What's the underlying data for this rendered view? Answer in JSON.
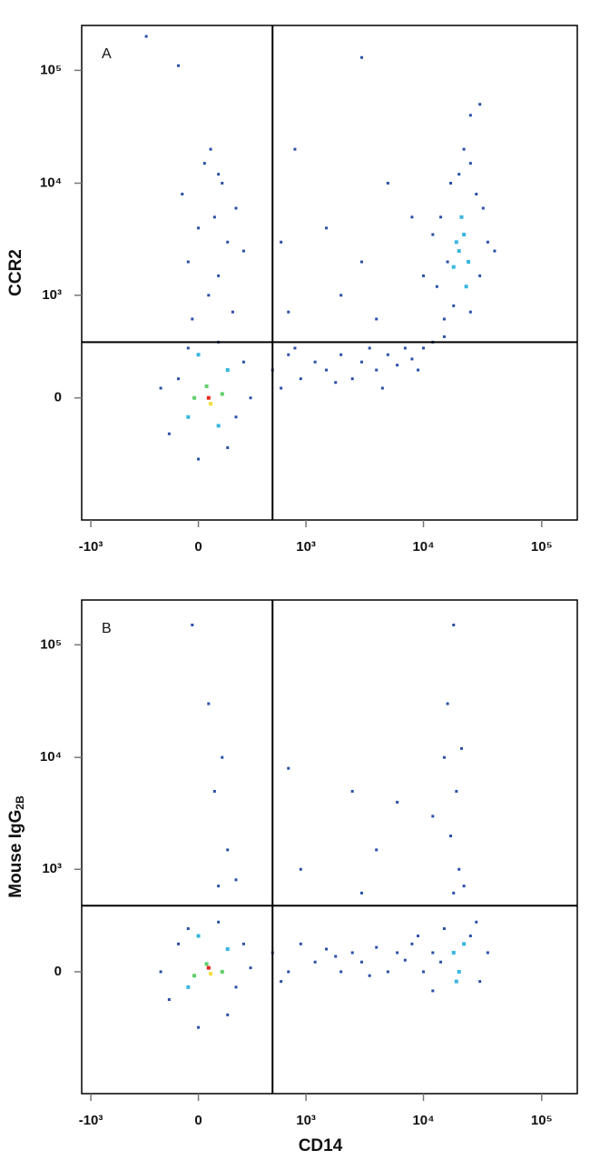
{
  "chart_data": [
    {
      "type": "scatter",
      "panel_label": "A",
      "ylabel": {
        "text": "CCR2"
      },
      "scale": "biexponential",
      "xlim": [
        -1200,
        200000
      ],
      "ylim": [
        -1500,
        250000
      ],
      "xticks": [
        {
          "value": -1000,
          "label": "-10³"
        },
        0,
        {
          "value": 1000,
          "label": "10³"
        },
        {
          "value": 10000,
          "label": "10⁴"
        },
        {
          "value": 100000,
          "label": "10⁵"
        }
      ],
      "yticks": [
        0,
        {
          "value": 1000,
          "label": "10³"
        },
        {
          "value": 10000,
          "label": "10⁴"
        },
        {
          "value": 100000,
          "label": "10⁵"
        }
      ],
      "quadrant": {
        "x": 500,
        "y": 350
      },
      "series": [
        {
          "color": "#2a4fa8",
          "x": [
            -150,
            -100,
            150,
            250,
            200,
            -50,
            100,
            300,
            -200,
            0,
            500,
            700,
            900,
            1200,
            1500,
            2000,
            2500,
            3000,
            4000,
            5000,
            6000,
            7000,
            8000,
            10000,
            12000,
            15000,
            600,
            800,
            1800,
            3500,
            4500,
            9000,
            50,
            100,
            -50,
            150,
            0,
            80,
            200,
            -80,
            120,
            30,
            60,
            180,
            -30,
            250,
            100,
            15000,
            18000,
            25000,
            13000,
            30000,
            16000,
            35000,
            14000,
            28000,
            20000,
            25000,
            22000,
            32000,
            17000,
            40000,
            12000,
            1500,
            3000,
            5000,
            800,
            2000,
            8000,
            700,
            4000,
            10000,
            600,
            -300,
            -100,
            3000,
            25000,
            30000
          ],
          "values": [
            -200,
            100,
            -300,
            200,
            -100,
            300,
            350,
            0,
            50,
            -400,
            150,
            250,
            100,
            200,
            150,
            250,
            100,
            200,
            150,
            250,
            180,
            300,
            220,
            300,
            350,
            400,
            50,
            300,
            80,
            300,
            50,
            150,
            1000,
            1500,
            2000,
            3000,
            4000,
            5000,
            6000,
            8000,
            10000,
            15000,
            20000,
            700,
            600,
            2500,
            12000,
            600,
            800,
            700,
            1200,
            1500,
            2000,
            3000,
            5000,
            8000,
            12000,
            15000,
            20000,
            6000,
            10000,
            2500,
            3500,
            4000,
            2000,
            10000,
            20000,
            1000,
            5000,
            700,
            600,
            1500,
            3000,
            200000,
            110000,
            130000,
            40000,
            50000
          ]
        },
        {
          "color": "#38b6e0",
          "x": [
            20000,
            22000,
            18000,
            24000,
            21000,
            19000,
            23000,
            -50,
            150,
            0,
            100
          ],
          "values": [
            2500,
            3500,
            1800,
            2000,
            5000,
            3000,
            1200,
            -100,
            150,
            250,
            -150
          ]
        },
        {
          "color": "#5fcf6a",
          "x": [
            40,
            -20,
            120
          ],
          "values": [
            60,
            0,
            20
          ]
        },
        {
          "color": "#efe03c",
          "x": [
            60
          ],
          "values": [
            -30
          ]
        },
        {
          "color": "#e8231b",
          "x": [
            50
          ],
          "values": [
            0
          ]
        }
      ]
    },
    {
      "type": "scatter",
      "panel_label": "B",
      "ylabel": {
        "text": "Mouse IgG",
        "subscript": "2B"
      },
      "xlabel": "CD14",
      "scale": "biexponential",
      "xlim": [
        -1200,
        200000
      ],
      "ylim": [
        -1500,
        250000
      ],
      "xticks": [
        {
          "value": -1000,
          "label": "-10³"
        },
        0,
        {
          "value": 1000,
          "label": "10³"
        },
        {
          "value": 10000,
          "label": "10⁴"
        },
        {
          "value": 100000,
          "label": "10⁵"
        }
      ],
      "yticks": [
        0,
        {
          "value": 1000,
          "label": "10³"
        },
        {
          "value": 10000,
          "label": "10⁴"
        },
        {
          "value": 100000,
          "label": "10⁵"
        }
      ],
      "quadrant": {
        "x": 500,
        "y": 450
      },
      "series": [
        {
          "color": "#2a4fa8",
          "x": [
            -150,
            -100,
            150,
            250,
            200,
            -50,
            100,
            300,
            -200,
            0,
            500,
            700,
            900,
            1200,
            1500,
            2000,
            2500,
            3000,
            4000,
            5000,
            6000,
            7000,
            8000,
            10000,
            12000,
            600,
            1800,
            3500,
            9000,
            12000,
            15000,
            25000,
            30000,
            35000,
            28000,
            14000,
            100,
            150,
            80,
            120,
            50,
            -30,
            200,
            18000,
            20000,
            17000,
            19000,
            21000,
            16000,
            18000,
            22000,
            15000,
            2500,
            700,
            6000,
            4000,
            900,
            12000,
            3000
          ],
          "values": [
            -150,
            150,
            -250,
            150,
            -80,
            250,
            300,
            20,
            0,
            -350,
            100,
            0,
            150,
            50,
            120,
            0,
            100,
            50,
            130,
            0,
            100,
            60,
            150,
            0,
            100,
            -50,
            80,
            -20,
            200,
            -100,
            250,
            200,
            -50,
            100,
            300,
            50,
            700,
            1500,
            5000,
            10000,
            30000,
            150000,
            800,
            600,
            1000,
            2000,
            5000,
            12000,
            30000,
            150000,
            700,
            10000,
            5000,
            8000,
            4000,
            1500,
            1000,
            3000,
            600
          ]
        },
        {
          "color": "#38b6e0",
          "x": [
            18000,
            20000,
            22000,
            19000,
            -50,
            150,
            0
          ],
          "values": [
            100,
            0,
            150,
            -50,
            -80,
            120,
            200
          ]
        },
        {
          "color": "#5fcf6a",
          "x": [
            40,
            -20,
            120
          ],
          "values": [
            40,
            -20,
            0
          ]
        },
        {
          "color": "#efe03c",
          "x": [
            60
          ],
          "values": [
            -10
          ]
        },
        {
          "color": "#e8231b",
          "x": [
            50
          ],
          "values": [
            20
          ]
        }
      ]
    }
  ]
}
